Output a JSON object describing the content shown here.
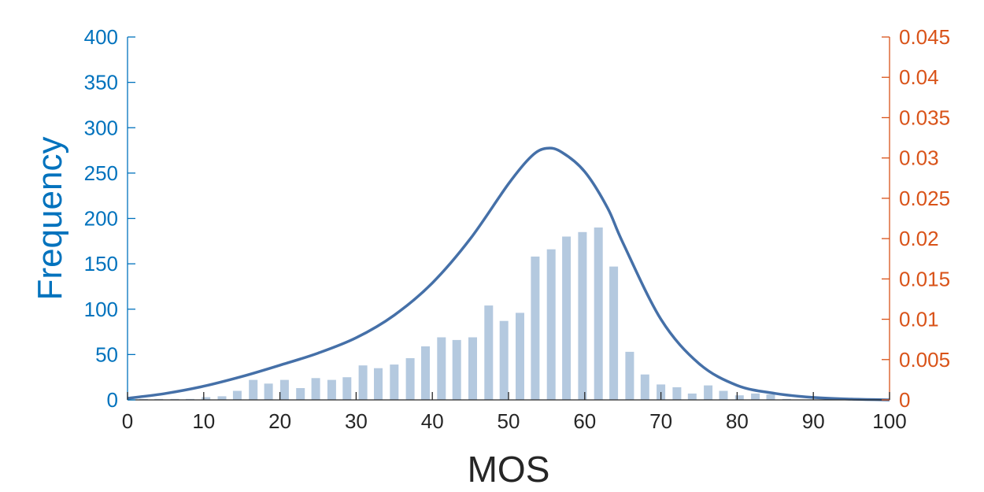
{
  "chart_data": {
    "type": "bar",
    "title": "",
    "xlabel": "MOS",
    "ylabel": "Frequency",
    "xlim": [
      0,
      100
    ],
    "ylim": [
      0,
      400
    ],
    "y2lim": [
      0,
      0.045
    ],
    "xticks": [
      0,
      10,
      20,
      30,
      40,
      50,
      60,
      70,
      80,
      90,
      100
    ],
    "yticks": [
      0,
      50,
      100,
      150,
      200,
      250,
      300,
      350,
      400
    ],
    "y2ticks": [
      "0",
      "0.005",
      "0.01",
      "0.015",
      "0.02",
      "0.025",
      "0.03",
      "0.035",
      "0.04",
      "0.045"
    ],
    "grid": false,
    "colors": {
      "left_axis": "#0072BD",
      "right_axis": "#D95319",
      "bars": "#B4C9DF",
      "curve": "#4570A8",
      "x_axis": "#262626"
    },
    "series": [
      {
        "kind": "histogram",
        "axis": "left",
        "x": [
          2.1,
          4.1,
          6.2,
          8.2,
          10.3,
          12.4,
          14.4,
          16.5,
          18.5,
          20.6,
          22.7,
          24.7,
          26.8,
          28.8,
          30.9,
          32.9,
          35.0,
          37.1,
          39.1,
          41.2,
          43.2,
          45.3,
          47.4,
          49.4,
          51.5,
          53.5,
          55.6,
          57.6,
          59.7,
          61.8,
          63.8,
          65.9,
          67.9,
          70.0,
          72.1,
          74.1,
          76.2,
          78.2,
          80.3,
          82.4,
          84.4,
          86.5,
          88.5,
          90.6,
          92.6,
          94.7,
          96.8,
          98.8
        ],
        "values": [
          1,
          1,
          1,
          1,
          3,
          4,
          10,
          22,
          18,
          22,
          13,
          24,
          22,
          25,
          38,
          35,
          39,
          46,
          59,
          69,
          66,
          69,
          104,
          87,
          96,
          158,
          166,
          180,
          185,
          190,
          147,
          53,
          28,
          17,
          14,
          7,
          16,
          10,
          5,
          7,
          6,
          1,
          0,
          0,
          0,
          0,
          0,
          0
        ]
      },
      {
        "kind": "density",
        "axis": "right",
        "x": [
          0,
          5,
          10,
          15,
          20,
          25,
          30,
          35,
          40,
          45,
          50,
          53,
          55,
          57,
          60,
          63,
          65,
          70,
          75,
          80,
          85,
          90,
          95,
          100
        ],
        "values": [
          0.0002,
          0.0008,
          0.0017,
          0.0029,
          0.0043,
          0.0058,
          0.0077,
          0.0105,
          0.0145,
          0.02,
          0.0268,
          0.0302,
          0.0312,
          0.0307,
          0.0283,
          0.0238,
          0.0195,
          0.01,
          0.0045,
          0.0018,
          0.0008,
          0.0003,
          0.0001,
          0.0
        ]
      }
    ]
  }
}
